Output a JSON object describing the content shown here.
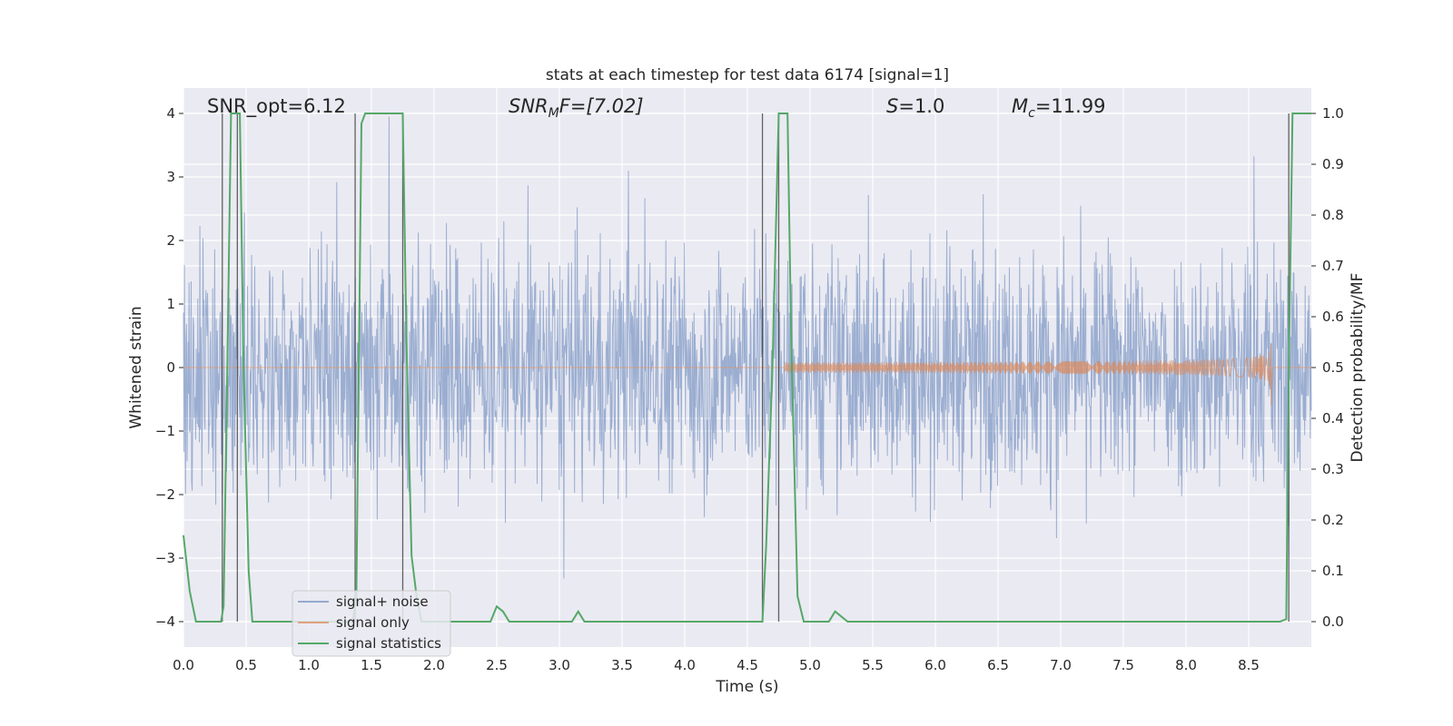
{
  "chart_data": {
    "type": "line",
    "title": "stats at each timestep for test data 6174 [signal=1]",
    "xlabel": "Time (s)",
    "ylabel_left": "Whitened strain",
    "ylabel_right": "Detection probability/MF",
    "xlim": [
      0.0,
      9.0
    ],
    "ylim_left": [
      -4.4,
      4.4
    ],
    "ylim_right": [
      -0.05,
      1.05
    ],
    "xticks": [
      "0.0",
      "0.5",
      "1.0",
      "1.5",
      "2.0",
      "2.5",
      "3.0",
      "3.5",
      "4.0",
      "4.5",
      "5.0",
      "5.5",
      "6.0",
      "6.5",
      "7.0",
      "7.5",
      "8.0",
      "8.5"
    ],
    "yticks_left": [
      "4",
      "3",
      "2",
      "1",
      "0",
      "−1",
      "−2",
      "−3",
      "−4"
    ],
    "yticks_left_values": [
      4,
      3,
      2,
      1,
      0,
      -1,
      -2,
      -3,
      -4
    ],
    "yticks_right": [
      "1.0",
      "0.9",
      "0.8",
      "0.7",
      "0.6",
      "0.5",
      "0.4",
      "0.3",
      "0.2",
      "0.1",
      "0.0"
    ],
    "yticks_right_values": [
      1.0,
      0.9,
      0.8,
      0.7,
      0.6,
      0.5,
      0.4,
      0.3,
      0.2,
      0.1,
      0.0
    ],
    "grid": true,
    "legend_position": "lower-left",
    "annotations": {
      "snr_opt": "SNR_opt=6.12",
      "snr_mf_prefix": "SNR",
      "snr_mf_sub": "M",
      "snr_mf_suffix": "F=[7.02]",
      "s_prefix": "S",
      "s_suffix": "=1.0",
      "mc_prefix": "M",
      "mc_sub": "c",
      "mc_suffix": "=11.99"
    },
    "series": [
      {
        "name": "signal+ noise",
        "color": "#4c72b0",
        "axis": "left",
        "amplitude_typical": 1.6,
        "peak_max": 4.0,
        "x_range": [
          0.0,
          9.0
        ]
      },
      {
        "name": "signal only",
        "color": "#dd8452",
        "axis": "left",
        "chirp_start": 4.8,
        "chirp_end": 8.68,
        "peak_amplitude": 0.8
      },
      {
        "name": "signal statistics",
        "color": "#55a868",
        "axis": "right",
        "x": [
          0.0,
          0.05,
          0.1,
          0.2,
          0.25,
          0.3,
          0.32,
          0.35,
          0.38,
          0.42,
          0.45,
          0.48,
          0.52,
          0.55,
          0.6,
          0.7,
          0.8,
          0.9,
          1.0,
          1.1,
          1.2,
          1.3,
          1.35,
          1.38,
          1.42,
          1.45,
          1.5,
          1.6,
          1.7,
          1.75,
          1.78,
          1.82,
          1.86,
          1.9,
          1.95,
          2.0,
          2.1,
          2.2,
          2.3,
          2.4,
          2.45,
          2.5,
          2.55,
          2.6,
          2.7,
          2.8,
          2.9,
          3.0,
          3.05,
          3.1,
          3.15,
          3.2,
          3.3,
          3.4,
          3.5,
          3.6,
          3.7,
          3.8,
          3.9,
          4.0,
          4.1,
          4.2,
          4.3,
          4.4,
          4.5,
          4.55,
          4.6,
          4.62,
          4.65,
          4.7,
          4.75,
          4.78,
          4.82,
          4.85,
          4.9,
          4.95,
          5.0,
          5.05,
          5.1,
          5.15,
          5.2,
          5.3,
          5.5,
          6.0,
          6.5,
          7.0,
          7.5,
          8.0,
          8.5,
          8.7,
          8.75,
          8.8,
          8.82,
          8.85,
          8.88,
          8.9,
          8.93,
          8.95,
          9.0
        ],
        "y": [
          0.17,
          0.06,
          0.0,
          0.0,
          0.0,
          0.0,
          0.03,
          0.5,
          1.0,
          1.0,
          1.0,
          0.5,
          0.1,
          0.0,
          0.0,
          0.0,
          0.0,
          0.0,
          0.0,
          0.0,
          0.0,
          0.0,
          0.0,
          0.05,
          0.98,
          1.0,
          1.0,
          1.0,
          1.0,
          1.0,
          0.55,
          0.13,
          0.05,
          0.0,
          0.0,
          0.0,
          0.0,
          0.0,
          0.0,
          0.0,
          0.0,
          0.03,
          0.02,
          0.0,
          0.0,
          0.0,
          0.0,
          0.0,
          0.0,
          0.0,
          0.02,
          0.0,
          0.0,
          0.0,
          0.0,
          0.0,
          0.0,
          0.0,
          0.0,
          0.0,
          0.0,
          0.0,
          0.0,
          0.0,
          0.0,
          0.0,
          0.0,
          0.0,
          0.15,
          0.5,
          1.0,
          1.0,
          1.0,
          0.55,
          0.05,
          0.0,
          0.0,
          0.0,
          0.0,
          0.0,
          0.02,
          0.0,
          0.0,
          0.0,
          0.0,
          0.0,
          0.0,
          0.0,
          0.0,
          0.0,
          0.0,
          0.005,
          0.5,
          1.0,
          1.0,
          1.0,
          1.0,
          1.0,
          1.0
        ]
      }
    ],
    "vertical_lines": [
      0.31,
      0.43,
      1.37,
      1.75,
      4.62,
      4.75,
      8.82
    ]
  }
}
